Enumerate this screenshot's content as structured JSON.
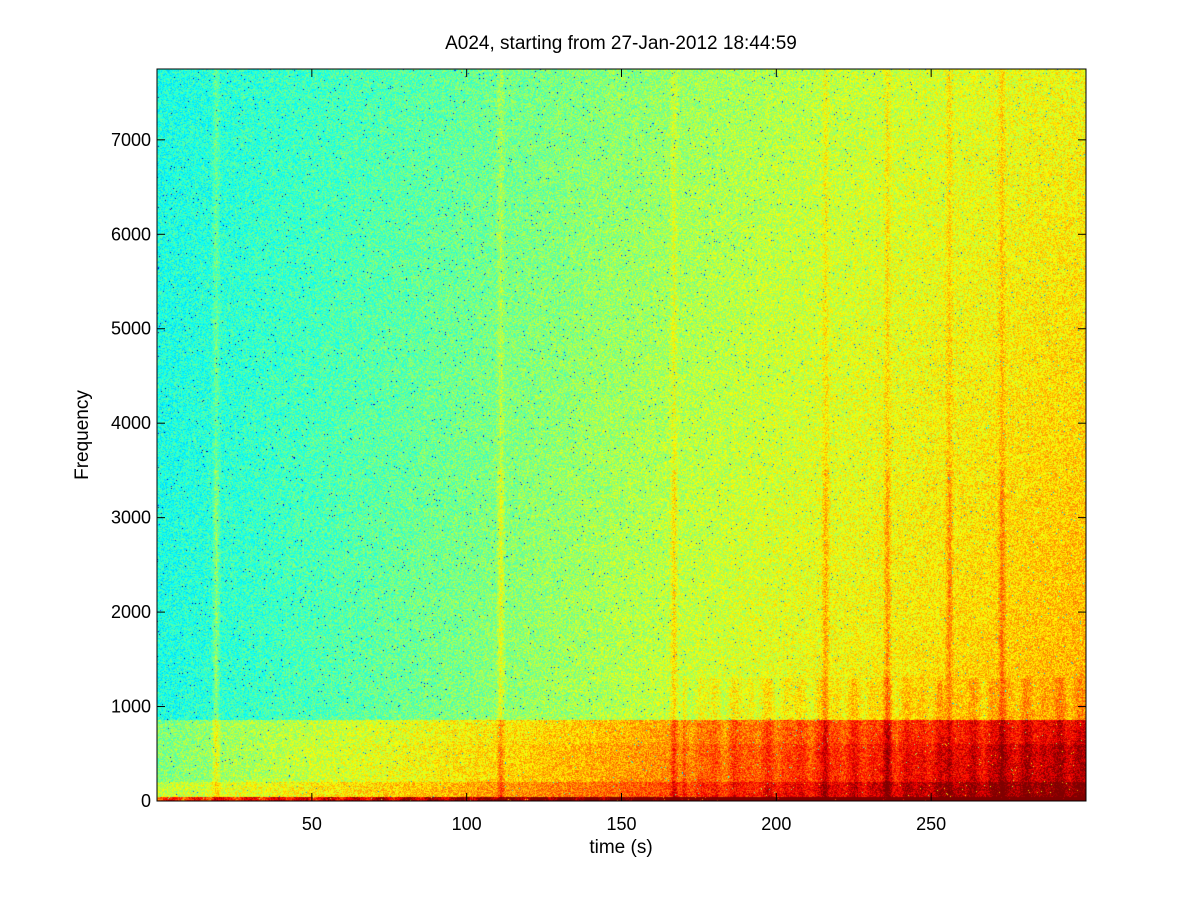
{
  "chart_data": {
    "type": "heatmap",
    "title": "A024, starting from 27-Jan-2012 18:44:59",
    "xlabel": "time (s)",
    "ylabel": "Frequency",
    "xlim": [
      0,
      300
    ],
    "ylim": [
      0,
      7750
    ],
    "x_ticks": [
      50,
      100,
      150,
      200,
      250
    ],
    "y_ticks": [
      0,
      1000,
      2000,
      3000,
      4000,
      5000,
      6000,
      7000
    ],
    "grid": false,
    "legend": "none",
    "colormap": "jet",
    "colors": {
      "low": "#33e8d6",
      "mid": "#a6ff59",
      "high": "#ffff1a",
      "peak": "#ff5500",
      "max": "#a00000"
    },
    "vertical_bands_s": [
      19,
      111,
      167,
      216,
      236,
      256,
      273
    ],
    "low_frequency_emphasis_hz": [
      0,
      1000
    ],
    "broadband_trend": "energy increases with time, strongest after ~170 s below 3000 Hz"
  }
}
